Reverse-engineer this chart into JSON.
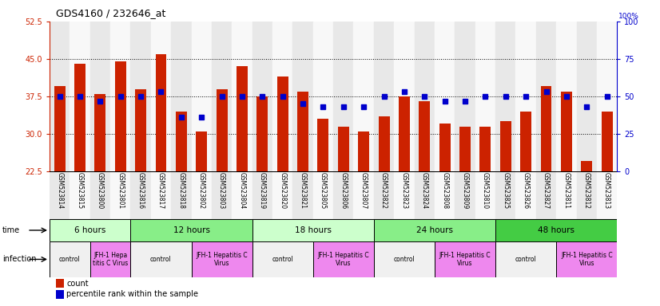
{
  "title": "GDS4160 / 232646_at",
  "samples": [
    "GSM523814",
    "GSM523815",
    "GSM523800",
    "GSM523801",
    "GSM523816",
    "GSM523817",
    "GSM523818",
    "GSM523802",
    "GSM523803",
    "GSM523804",
    "GSM523819",
    "GSM523820",
    "GSM523821",
    "GSM523805",
    "GSM523806",
    "GSM523807",
    "GSM523822",
    "GSM523823",
    "GSM523824",
    "GSM523808",
    "GSM523809",
    "GSM523810",
    "GSM523825",
    "GSM523826",
    "GSM523827",
    "GSM523811",
    "GSM523812",
    "GSM523813"
  ],
  "counts": [
    39.5,
    44.0,
    38.0,
    44.5,
    39.0,
    46.0,
    34.5,
    30.5,
    39.0,
    43.5,
    37.5,
    41.5,
    38.5,
    33.0,
    31.5,
    30.5,
    33.5,
    37.5,
    36.5,
    32.0,
    31.5,
    31.5,
    32.5,
    34.5,
    39.5,
    38.5,
    24.5,
    34.5
  ],
  "percentiles": [
    50,
    50,
    47,
    50,
    50,
    53,
    36,
    36,
    50,
    50,
    50,
    50,
    45,
    43,
    43,
    43,
    50,
    53,
    50,
    47,
    47,
    50,
    50,
    50,
    53,
    50,
    43,
    50
  ],
  "ylim_left": [
    22.5,
    52.5
  ],
  "yticks_left": [
    22.5,
    30.0,
    37.5,
    45.0,
    52.5
  ],
  "ylim_right": [
    0,
    100
  ],
  "yticks_right": [
    0,
    25,
    50,
    75,
    100
  ],
  "bar_color": "#cc2200",
  "dot_color": "#0000cc",
  "time_groups": [
    {
      "label": "6 hours",
      "start": 0,
      "end": 4,
      "color": "#ccffcc"
    },
    {
      "label": "12 hours",
      "start": 4,
      "end": 10,
      "color": "#88ee88"
    },
    {
      "label": "18 hours",
      "start": 10,
      "end": 16,
      "color": "#ccffcc"
    },
    {
      "label": "24 hours",
      "start": 16,
      "end": 22,
      "color": "#88ee88"
    },
    {
      "label": "48 hours",
      "start": 22,
      "end": 28,
      "color": "#44cc44"
    }
  ],
  "infection_groups": [
    {
      "label": "control",
      "start": 0,
      "end": 2,
      "color": "#f0f0f0"
    },
    {
      "label": "JFH-1 Hepa\ntitis C Virus",
      "start": 2,
      "end": 4,
      "color": "#ee88ee"
    },
    {
      "label": "control",
      "start": 4,
      "end": 7,
      "color": "#f0f0f0"
    },
    {
      "label": "JFH-1 Hepatitis C\nVirus",
      "start": 7,
      "end": 10,
      "color": "#ee88ee"
    },
    {
      "label": "control",
      "start": 10,
      "end": 13,
      "color": "#f0f0f0"
    },
    {
      "label": "JFH-1 Hepatitis C\nVirus",
      "start": 13,
      "end": 16,
      "color": "#ee88ee"
    },
    {
      "label": "control",
      "start": 16,
      "end": 19,
      "color": "#f0f0f0"
    },
    {
      "label": "JFH-1 Hepatitis C\nVirus",
      "start": 19,
      "end": 22,
      "color": "#ee88ee"
    },
    {
      "label": "control",
      "start": 22,
      "end": 25,
      "color": "#f0f0f0"
    },
    {
      "label": "JFH-1 Hepatitis C\nVirus",
      "start": 25,
      "end": 28,
      "color": "#ee88ee"
    }
  ],
  "col_colors": [
    "#e8e8e8",
    "#f8f8f8"
  ]
}
